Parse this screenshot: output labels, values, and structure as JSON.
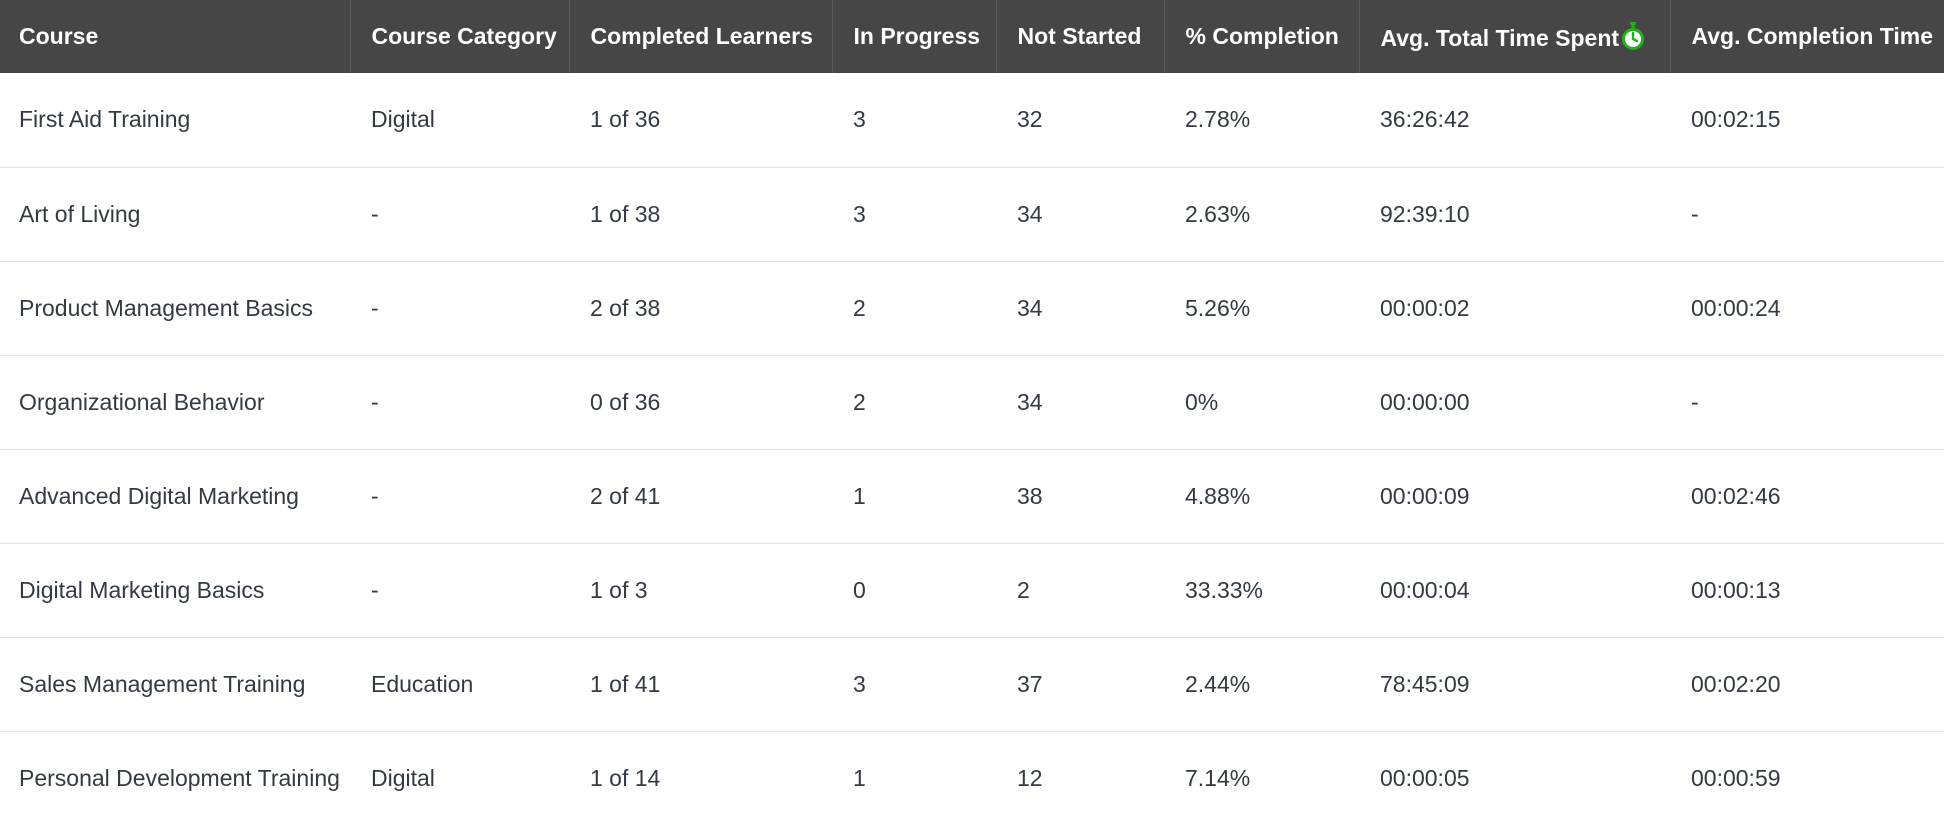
{
  "table": {
    "columns": [
      "Course",
      "Course Category",
      "Completed Learners",
      "In Progress",
      "Not Started",
      "% Completion",
      "Avg. Total Time Spent",
      "Avg. Completion Time"
    ],
    "rows": [
      {
        "course": "First Aid Training",
        "category": "Digital",
        "completed": "1 of 36",
        "in_progress": "3",
        "not_started": "32",
        "completion": "2.78%",
        "avg_total_time": "36:26:42",
        "avg_completion_time": "00:02:15"
      },
      {
        "course": "Art of Living",
        "category": "-",
        "completed": "1 of 38",
        "in_progress": "3",
        "not_started": "34",
        "completion": "2.63%",
        "avg_total_time": "92:39:10",
        "avg_completion_time": "-"
      },
      {
        "course": "Product Management Basics",
        "category": "-",
        "completed": "2 of 38",
        "in_progress": "2",
        "not_started": "34",
        "completion": "5.26%",
        "avg_total_time": "00:00:02",
        "avg_completion_time": "00:00:24"
      },
      {
        "course": "Organizational Behavior",
        "category": "-",
        "completed": "0 of 36",
        "in_progress": "2",
        "not_started": "34",
        "completion": "0%",
        "avg_total_time": "00:00:00",
        "avg_completion_time": "-"
      },
      {
        "course": "Advanced Digital Marketing",
        "category": "-",
        "completed": "2 of 41",
        "in_progress": "1",
        "not_started": "38",
        "completion": "4.88%",
        "avg_total_time": "00:00:09",
        "avg_completion_time": "00:02:46"
      },
      {
        "course": "Digital Marketing Basics",
        "category": "-",
        "completed": "1 of 3",
        "in_progress": "0",
        "not_started": "2",
        "completion": "33.33%",
        "avg_total_time": "00:00:04",
        "avg_completion_time": "00:00:13"
      },
      {
        "course": "Sales Management Training",
        "category": "Education",
        "completed": "1 of 41",
        "in_progress": "3",
        "not_started": "37",
        "completion": "2.44%",
        "avg_total_time": "78:45:09",
        "avg_completion_time": "00:02:20"
      },
      {
        "course": "Personal Development Training",
        "category": "Digital",
        "completed": "1 of 14",
        "in_progress": "1",
        "not_started": "12",
        "completion": "7.14%",
        "avg_total_time": "00:00:05",
        "avg_completion_time": "00:00:59"
      }
    ]
  },
  "icons": {
    "timer": "stopwatch-icon"
  },
  "colors": {
    "header_background": "#464646",
    "header_text": "#ffffff",
    "timer_icon": "#22b11b",
    "row_divider": "#e2e2e2"
  }
}
